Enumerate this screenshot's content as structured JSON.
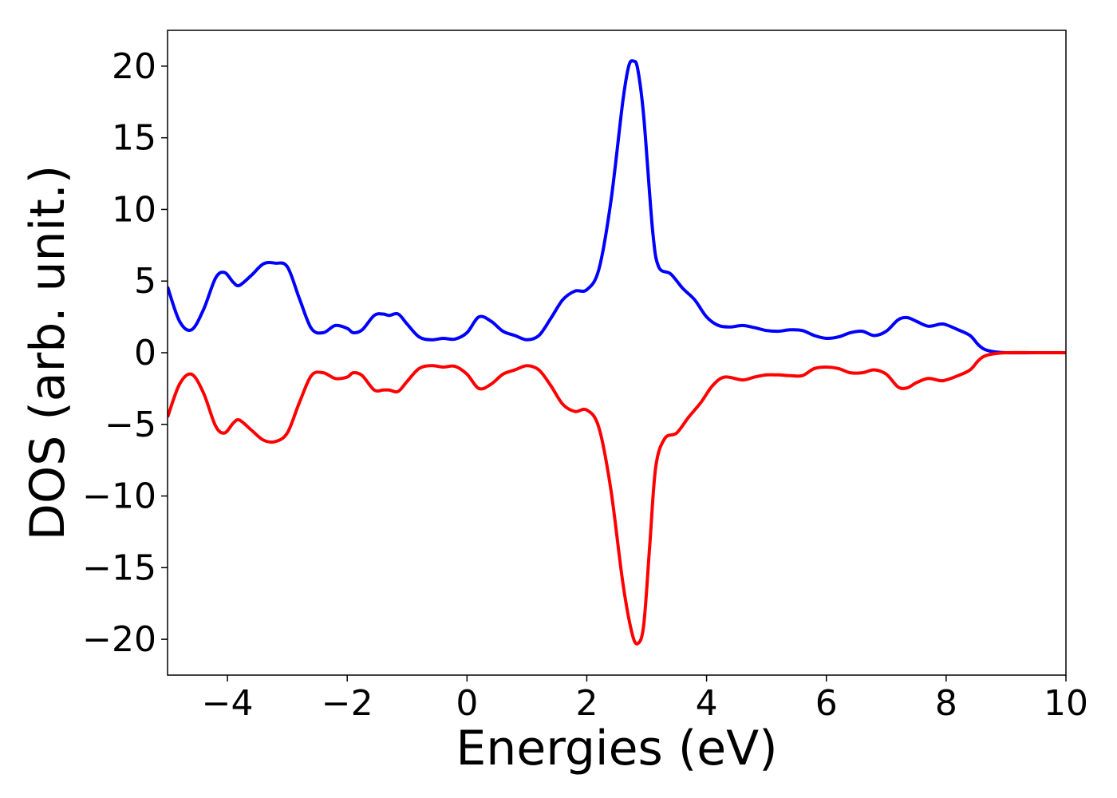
{
  "chart_data": {
    "type": "line",
    "title": "",
    "xlabel": "Energies (eV)",
    "ylabel": "DOS (arb. unit.)",
    "xlim": [
      -5,
      10
    ],
    "ylim": [
      -22.5,
      22.5
    ],
    "grid": false,
    "legend": "none",
    "x_ticks": [
      -4,
      -2,
      0,
      2,
      4,
      6,
      8,
      10
    ],
    "x_tick_labels": [
      "−4",
      "−2",
      "0",
      "2",
      "4",
      "6",
      "8",
      "10"
    ],
    "y_ticks": [
      20,
      15,
      10,
      5,
      0,
      -5,
      -10,
      -15,
      -20
    ],
    "y_tick_labels": [
      "20",
      "15",
      "10",
      "5",
      "0",
      "−5",
      "−10",
      "−15",
      "−20"
    ],
    "series": [
      {
        "color": "#0000ff",
        "points": [
          [
            -5.0,
            4.6
          ],
          [
            -4.8,
            2.2
          ],
          [
            -4.6,
            1.6
          ],
          [
            -4.4,
            3.0
          ],
          [
            -4.2,
            5.2
          ],
          [
            -4.05,
            5.6
          ],
          [
            -3.9,
            4.9
          ],
          [
            -3.8,
            4.7
          ],
          [
            -3.6,
            5.4
          ],
          [
            -3.4,
            6.2
          ],
          [
            -3.2,
            6.25
          ],
          [
            -3.0,
            6.0
          ],
          [
            -2.8,
            3.8
          ],
          [
            -2.6,
            1.7
          ],
          [
            -2.4,
            1.4
          ],
          [
            -2.2,
            1.9
          ],
          [
            -2.0,
            1.7
          ],
          [
            -1.9,
            1.4
          ],
          [
            -1.75,
            1.6
          ],
          [
            -1.55,
            2.6
          ],
          [
            -1.4,
            2.7
          ],
          [
            -1.3,
            2.6
          ],
          [
            -1.15,
            2.7
          ],
          [
            -1.0,
            2.0
          ],
          [
            -0.8,
            1.1
          ],
          [
            -0.6,
            0.9
          ],
          [
            -0.4,
            1.0
          ],
          [
            -0.2,
            0.95
          ],
          [
            0.0,
            1.4
          ],
          [
            0.2,
            2.5
          ],
          [
            0.4,
            2.2
          ],
          [
            0.6,
            1.5
          ],
          [
            0.8,
            1.2
          ],
          [
            1.0,
            0.9
          ],
          [
            1.2,
            1.2
          ],
          [
            1.4,
            2.4
          ],
          [
            1.6,
            3.7
          ],
          [
            1.8,
            4.3
          ],
          [
            2.0,
            4.4
          ],
          [
            2.2,
            5.8
          ],
          [
            2.4,
            10.5
          ],
          [
            2.6,
            17.5
          ],
          [
            2.7,
            20.0
          ],
          [
            2.78,
            20.35
          ],
          [
            2.85,
            19.8
          ],
          [
            2.95,
            16.5
          ],
          [
            3.1,
            8.5
          ],
          [
            3.2,
            6.0
          ],
          [
            3.4,
            5.5
          ],
          [
            3.6,
            4.5
          ],
          [
            3.8,
            3.7
          ],
          [
            4.0,
            2.5
          ],
          [
            4.2,
            1.9
          ],
          [
            4.4,
            1.8
          ],
          [
            4.6,
            1.9
          ],
          [
            4.8,
            1.75
          ],
          [
            5.0,
            1.55
          ],
          [
            5.2,
            1.5
          ],
          [
            5.4,
            1.6
          ],
          [
            5.6,
            1.55
          ],
          [
            5.8,
            1.2
          ],
          [
            6.0,
            1.0
          ],
          [
            6.2,
            1.1
          ],
          [
            6.4,
            1.4
          ],
          [
            6.6,
            1.5
          ],
          [
            6.8,
            1.2
          ],
          [
            7.0,
            1.5
          ],
          [
            7.2,
            2.3
          ],
          [
            7.35,
            2.45
          ],
          [
            7.5,
            2.2
          ],
          [
            7.7,
            1.85
          ],
          [
            7.9,
            2.0
          ],
          [
            8.0,
            1.95
          ],
          [
            8.2,
            1.6
          ],
          [
            8.4,
            1.2
          ],
          [
            8.55,
            0.5
          ],
          [
            8.7,
            0.15
          ],
          [
            9.0,
            0.0
          ],
          [
            9.5,
            0.0
          ],
          [
            10.0,
            0.0
          ]
        ]
      },
      {
        "color": "#ff0000",
        "points": [
          [
            -5.0,
            -4.5
          ],
          [
            -4.8,
            -2.2
          ],
          [
            -4.6,
            -1.5
          ],
          [
            -4.4,
            -2.8
          ],
          [
            -4.2,
            -5.1
          ],
          [
            -4.05,
            -5.6
          ],
          [
            -3.9,
            -4.9
          ],
          [
            -3.8,
            -4.7
          ],
          [
            -3.6,
            -5.4
          ],
          [
            -3.4,
            -6.1
          ],
          [
            -3.2,
            -6.2
          ],
          [
            -3.0,
            -5.6
          ],
          [
            -2.8,
            -3.5
          ],
          [
            -2.6,
            -1.6
          ],
          [
            -2.4,
            -1.4
          ],
          [
            -2.2,
            -1.8
          ],
          [
            -2.0,
            -1.7
          ],
          [
            -1.9,
            -1.4
          ],
          [
            -1.75,
            -1.6
          ],
          [
            -1.55,
            -2.6
          ],
          [
            -1.4,
            -2.6
          ],
          [
            -1.3,
            -2.6
          ],
          [
            -1.15,
            -2.7
          ],
          [
            -1.0,
            -2.0
          ],
          [
            -0.8,
            -1.1
          ],
          [
            -0.6,
            -0.9
          ],
          [
            -0.4,
            -1.0
          ],
          [
            -0.2,
            -0.95
          ],
          [
            0.0,
            -1.5
          ],
          [
            0.2,
            -2.5
          ],
          [
            0.4,
            -2.2
          ],
          [
            0.6,
            -1.5
          ],
          [
            0.8,
            -1.2
          ],
          [
            1.0,
            -0.9
          ],
          [
            1.2,
            -1.2
          ],
          [
            1.4,
            -2.3
          ],
          [
            1.6,
            -3.6
          ],
          [
            1.8,
            -4.1
          ],
          [
            2.0,
            -4.0
          ],
          [
            2.2,
            -5.2
          ],
          [
            2.4,
            -9.5
          ],
          [
            2.6,
            -16.0
          ],
          [
            2.75,
            -19.5
          ],
          [
            2.85,
            -20.3
          ],
          [
            2.95,
            -19.0
          ],
          [
            3.05,
            -13.5
          ],
          [
            3.15,
            -8.0
          ],
          [
            3.3,
            -6.0
          ],
          [
            3.5,
            -5.6
          ],
          [
            3.7,
            -4.5
          ],
          [
            3.9,
            -3.5
          ],
          [
            4.1,
            -2.3
          ],
          [
            4.3,
            -1.7
          ],
          [
            4.6,
            -1.9
          ],
          [
            4.8,
            -1.7
          ],
          [
            5.0,
            -1.55
          ],
          [
            5.2,
            -1.55
          ],
          [
            5.4,
            -1.6
          ],
          [
            5.6,
            -1.6
          ],
          [
            5.8,
            -1.1
          ],
          [
            6.0,
            -1.0
          ],
          [
            6.2,
            -1.1
          ],
          [
            6.4,
            -1.4
          ],
          [
            6.6,
            -1.4
          ],
          [
            6.8,
            -1.2
          ],
          [
            7.0,
            -1.5
          ],
          [
            7.2,
            -2.4
          ],
          [
            7.35,
            -2.45
          ],
          [
            7.5,
            -2.1
          ],
          [
            7.7,
            -1.8
          ],
          [
            7.9,
            -1.95
          ],
          [
            8.0,
            -1.9
          ],
          [
            8.2,
            -1.6
          ],
          [
            8.4,
            -1.2
          ],
          [
            8.55,
            -0.5
          ],
          [
            8.7,
            -0.15
          ],
          [
            9.0,
            0.0
          ],
          [
            9.5,
            0.0
          ],
          [
            10.0,
            0.0
          ]
        ]
      }
    ]
  }
}
